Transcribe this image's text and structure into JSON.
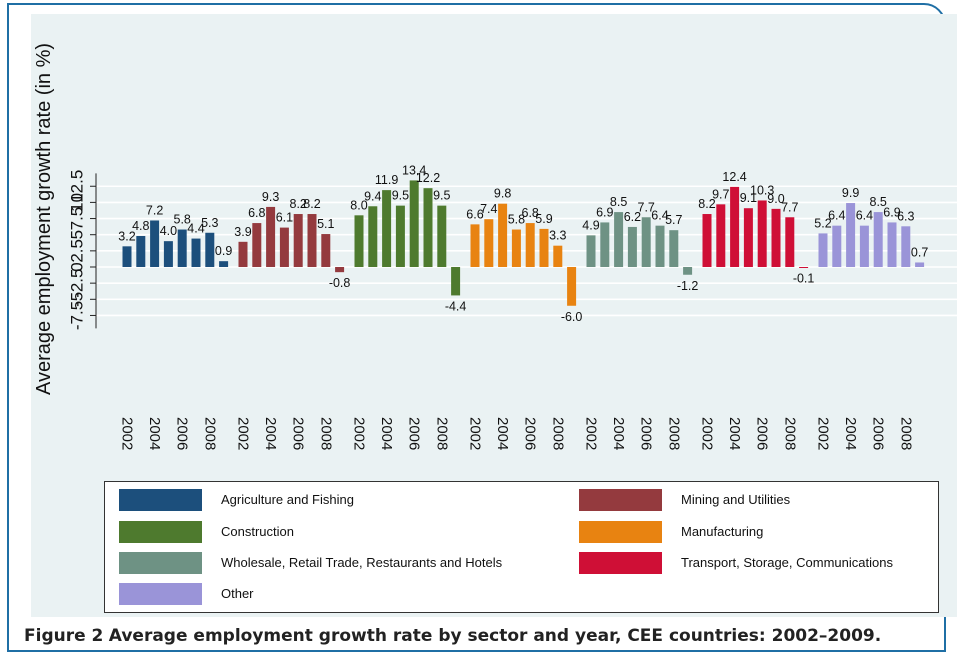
{
  "caption": {
    "label": "Figure 2",
    "text": "Average employment growth rate by sector and year, CEE countries: 2002–2009."
  },
  "colors": {
    "background": "#eaf2f3",
    "grid": "#ffffff",
    "frame": "#1f6fa5"
  },
  "chart_data": {
    "type": "bar",
    "title": "",
    "ylabel": "Average employment growth rate (in %)",
    "xlabel": "",
    "ylim": [
      -9.5,
      14.5
    ],
    "yticks": [
      -7.5,
      -5,
      -2.5,
      0,
      2.5,
      5,
      7.5,
      10,
      12.5
    ],
    "ytick_labels": [
      "-7.5",
      "-5",
      "-2.5",
      "0",
      "2.5",
      "5",
      "7.5",
      "10",
      "12.5"
    ],
    "years": [
      "2002",
      "2003",
      "2004",
      "2005",
      "2006",
      "2007",
      "2008",
      "2009"
    ],
    "xtick_labels": [
      "2002",
      "2004",
      "2006",
      "2008"
    ],
    "grid": true,
    "legend": {
      "position": "bottom",
      "columns": 2
    },
    "series": [
      {
        "name": "Agriculture and Fishing",
        "color": "#1c4f7c",
        "values": [
          3.2,
          4.8,
          7.2,
          4.0,
          5.8,
          4.4,
          5.3,
          0.9
        ]
      },
      {
        "name": "Mining and Utilities",
        "color": "#943a3e",
        "values": [
          3.9,
          6.8,
          9.3,
          6.1,
          8.2,
          8.2,
          5.1,
          -0.8
        ]
      },
      {
        "name": "Construction",
        "color": "#4e7a2e",
        "values": [
          8.0,
          9.4,
          11.9,
          9.5,
          13.4,
          12.2,
          9.5,
          -4.4
        ]
      },
      {
        "name": "Manufacturing",
        "color": "#e88311",
        "values": [
          6.6,
          7.4,
          9.8,
          5.8,
          6.8,
          5.9,
          3.3,
          -6.0
        ]
      },
      {
        "name": "Wholesale, Retail Trade, Restaurants and Hotels",
        "color": "#6e9284",
        "values": [
          4.9,
          6.9,
          8.5,
          6.2,
          7.7,
          6.4,
          5.7,
          -1.2
        ]
      },
      {
        "name": "Transport, Storage, Communications",
        "color": "#cf0f36",
        "values": [
          8.2,
          9.7,
          12.4,
          9.1,
          10.3,
          9.0,
          7.7,
          -0.1
        ]
      },
      {
        "name": "Other",
        "color": "#9a94d8",
        "values": [
          5.2,
          6.4,
          9.9,
          6.4,
          8.5,
          6.9,
          6.3,
          0.7
        ]
      }
    ]
  }
}
